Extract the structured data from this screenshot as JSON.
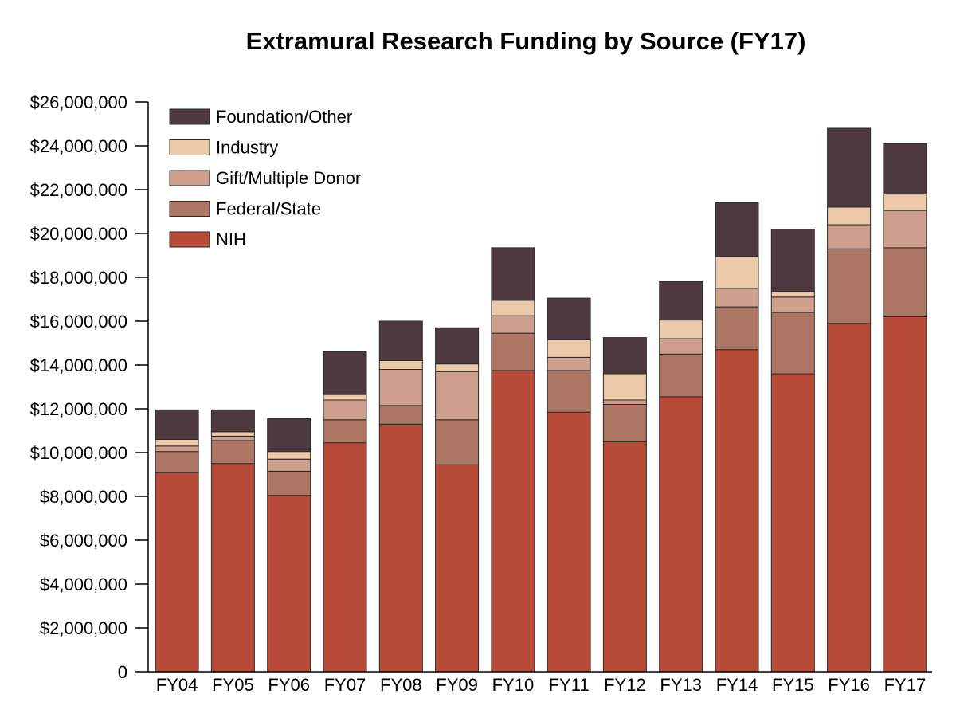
{
  "chart_data": {
    "type": "bar",
    "stacked": true,
    "title": "Extramural Research Funding by Source (FY17)",
    "xlabel": "",
    "ylabel": "",
    "categories": [
      "FY04",
      "FY05",
      "FY06",
      "FY07",
      "FY08",
      "FY09",
      "FY10",
      "FY11",
      "FY12",
      "FY13",
      "FY14",
      "FY15",
      "FY16",
      "FY17"
    ],
    "ylim": [
      0,
      26000000
    ],
    "yticks": [
      0,
      2000000,
      4000000,
      6000000,
      8000000,
      10000000,
      12000000,
      14000000,
      16000000,
      18000000,
      20000000,
      22000000,
      24000000,
      26000000
    ],
    "ytick_labels": [
      "0",
      "$2,000,000",
      "$4,000,000",
      "$6,000,000",
      "$8,000,000",
      "$10,000,000",
      "$12,000,000",
      "$14,000,000",
      "$16,000,000",
      "$18,000,000",
      "$20,000,000",
      "$22,000,000",
      "$24,000,000",
      "$26,000,000"
    ],
    "grid": false,
    "legend_position": "top-left",
    "series": [
      {
        "name": "NIH",
        "color": "#b84a38",
        "values": [
          9100000,
          9500000,
          8050000,
          10450000,
          11300000,
          9450000,
          13750000,
          11850000,
          10500000,
          12550000,
          14700000,
          13600000,
          15900000,
          16200000
        ]
      },
      {
        "name": "Federal/State",
        "color": "#ad7564",
        "values": [
          950000,
          1050000,
          1100000,
          1050000,
          850000,
          2050000,
          1700000,
          1900000,
          1700000,
          1950000,
          1950000,
          2800000,
          3400000,
          3150000
        ]
      },
      {
        "name": "Gift/Multiple Donor",
        "color": "#cd9f8c",
        "values": [
          250000,
          200000,
          550000,
          900000,
          1650000,
          2200000,
          800000,
          600000,
          200000,
          700000,
          850000,
          700000,
          1100000,
          1700000
        ]
      },
      {
        "name": "Industry",
        "color": "#ebc9a9",
        "values": [
          300000,
          200000,
          350000,
          250000,
          400000,
          350000,
          700000,
          800000,
          1200000,
          850000,
          1450000,
          250000,
          800000,
          750000
        ]
      },
      {
        "name": "Foundation/Other",
        "color": "#4f3940",
        "values": [
          1350000,
          1000000,
          1500000,
          1950000,
          1800000,
          1650000,
          2400000,
          1900000,
          1650000,
          1750000,
          2450000,
          2850000,
          3600000,
          2300000
        ]
      }
    ]
  }
}
